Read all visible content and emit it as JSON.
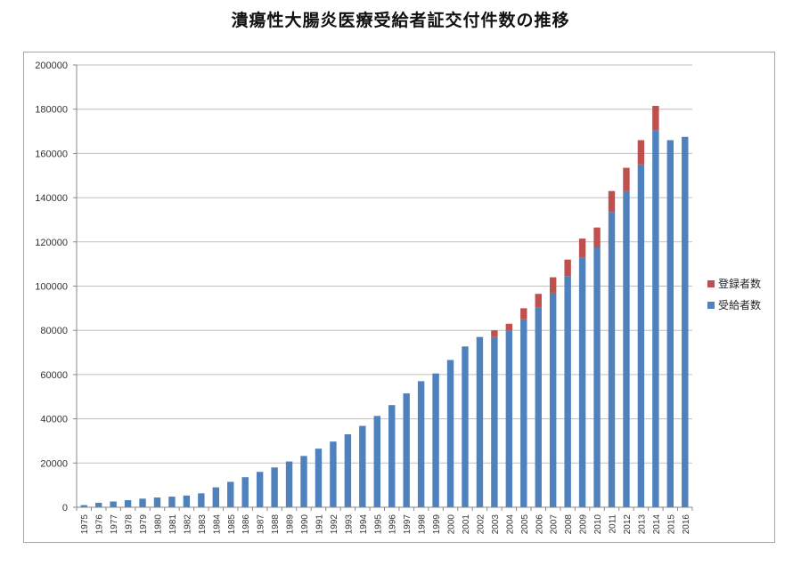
{
  "title": "潰瘍性大腸炎医療受給者証交付件数の推移",
  "chart_data": {
    "type": "bar",
    "stacked": true,
    "categories": [
      "1975",
      "1976",
      "1977",
      "1978",
      "1979",
      "1980",
      "1981",
      "1982",
      "1983",
      "1984",
      "1985",
      "1986",
      "1987",
      "1988",
      "1989",
      "1990",
      "1991",
      "1992",
      "1993",
      "1994",
      "1995",
      "1996",
      "1997",
      "1998",
      "1999",
      "2000",
      "2001",
      "2002",
      "2003",
      "2004",
      "2005",
      "2006",
      "2007",
      "2008",
      "2009",
      "2010",
      "2011",
      "2012",
      "2013",
      "2014",
      "2015",
      "2016"
    ],
    "series": [
      {
        "name": "受給者数",
        "color": "#4f81bd",
        "values": [
          965,
          2000,
          2600,
          3200,
          3900,
          4400,
          4800,
          5300,
          6300,
          9000,
          11500,
          13600,
          16000,
          18000,
          20700,
          23200,
          26500,
          29700,
          33000,
          36800,
          41300,
          46200,
          51500,
          57000,
          60500,
          66600,
          72700,
          77000,
          77000,
          80000,
          85000,
          90500,
          97000,
          104500,
          113000,
          117500,
          133500,
          143000,
          155000,
          170500,
          166000,
          167500
        ]
      },
      {
        "name": "登録者数",
        "color": "#c0504d",
        "values": [
          0,
          0,
          0,
          0,
          0,
          0,
          0,
          0,
          0,
          0,
          0,
          0,
          0,
          0,
          0,
          0,
          0,
          0,
          0,
          0,
          0,
          0,
          0,
          0,
          0,
          0,
          0,
          0,
          3000,
          3000,
          5000,
          6000,
          7000,
          7500,
          8500,
          9000,
          9500,
          10500,
          11000,
          11000,
          0,
          0
        ]
      }
    ],
    "yticks": [
      0,
      20000,
      40000,
      60000,
      80000,
      100000,
      120000,
      140000,
      160000,
      180000,
      200000
    ],
    "ylim": [
      0,
      200000
    ],
    "grid": true,
    "legend": "right"
  }
}
